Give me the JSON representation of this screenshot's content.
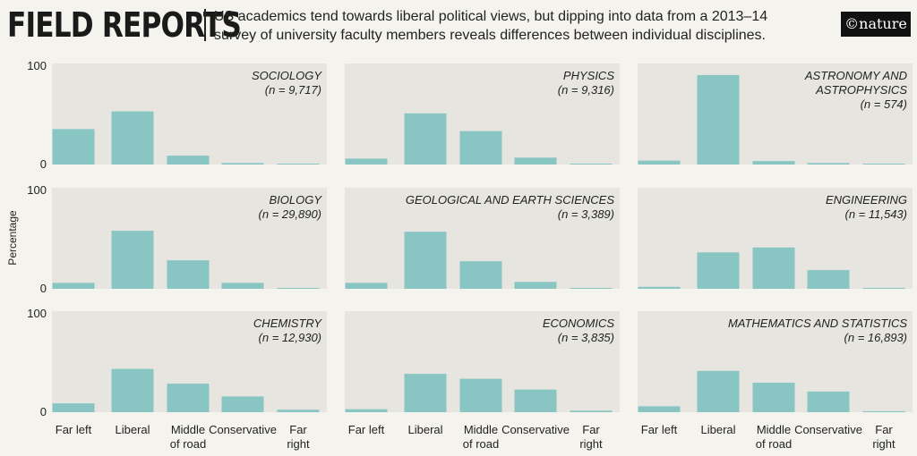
{
  "header": {
    "title": "FIELD REPORTS",
    "subtitle_line1": "US academics tend towards liberal political views, but dipping into data from a 2013–14",
    "subtitle_line2": "survey of university faculty members reveals differences between individual disciplines.",
    "logo": "©nature"
  },
  "chart_data": {
    "type": "bar",
    "ylabel": "Percentage",
    "ylim": [
      0,
      100
    ],
    "yticks": [
      "0",
      "100"
    ],
    "categories": [
      "Far left",
      "Liberal",
      "Middle of road",
      "Conservative",
      "Far right"
    ],
    "category_labels": [
      [
        "Far left"
      ],
      [
        "Liberal"
      ],
      [
        "Middle",
        "of road"
      ],
      [
        "Conservative"
      ],
      [
        "Far",
        "right"
      ]
    ],
    "bar_color": "#89c5c2",
    "panel_color": "#e6e5df",
    "panels": [
      {
        "title_lines": [
          "SOCIOLOGY",
          "(n = 9,717)"
        ],
        "values": [
          36,
          54,
          9,
          1.5,
          0.3
        ]
      },
      {
        "title_lines": [
          "PHYSICS",
          "(n = 9,316)"
        ],
        "values": [
          6,
          52,
          34,
          7,
          0.3
        ]
      },
      {
        "title_lines": [
          "ASTRONOMY AND",
          "ASTROPHYSICS",
          "(n = 574)"
        ],
        "values": [
          4,
          91,
          3.5,
          1.5,
          0.2
        ]
      },
      {
        "title_lines": [
          "BIOLOGY",
          "(n = 29,890)"
        ],
        "values": [
          6,
          59,
          29,
          6,
          0.5
        ]
      },
      {
        "title_lines": [
          "GEOLOGICAL AND EARTH SCIENCES",
          "(n = 3,389)"
        ],
        "values": [
          6,
          58,
          28,
          7,
          0.8
        ]
      },
      {
        "title_lines": [
          "ENGINEERING",
          "(n = 11,543)"
        ],
        "values": [
          2,
          37,
          42,
          19,
          1
        ]
      },
      {
        "title_lines": [
          "CHEMISTRY",
          "(n = 12,930)"
        ],
        "values": [
          9,
          44,
          29,
          16,
          2.5
        ]
      },
      {
        "title_lines": [
          "ECONOMICS",
          "(n = 3,835)"
        ],
        "values": [
          3,
          39,
          34,
          23,
          1.5
        ]
      },
      {
        "title_lines": [
          "MATHEMATICS AND STATISTICS",
          "(n = 16,893)"
        ],
        "values": [
          6,
          42,
          30,
          21,
          1
        ]
      }
    ]
  }
}
